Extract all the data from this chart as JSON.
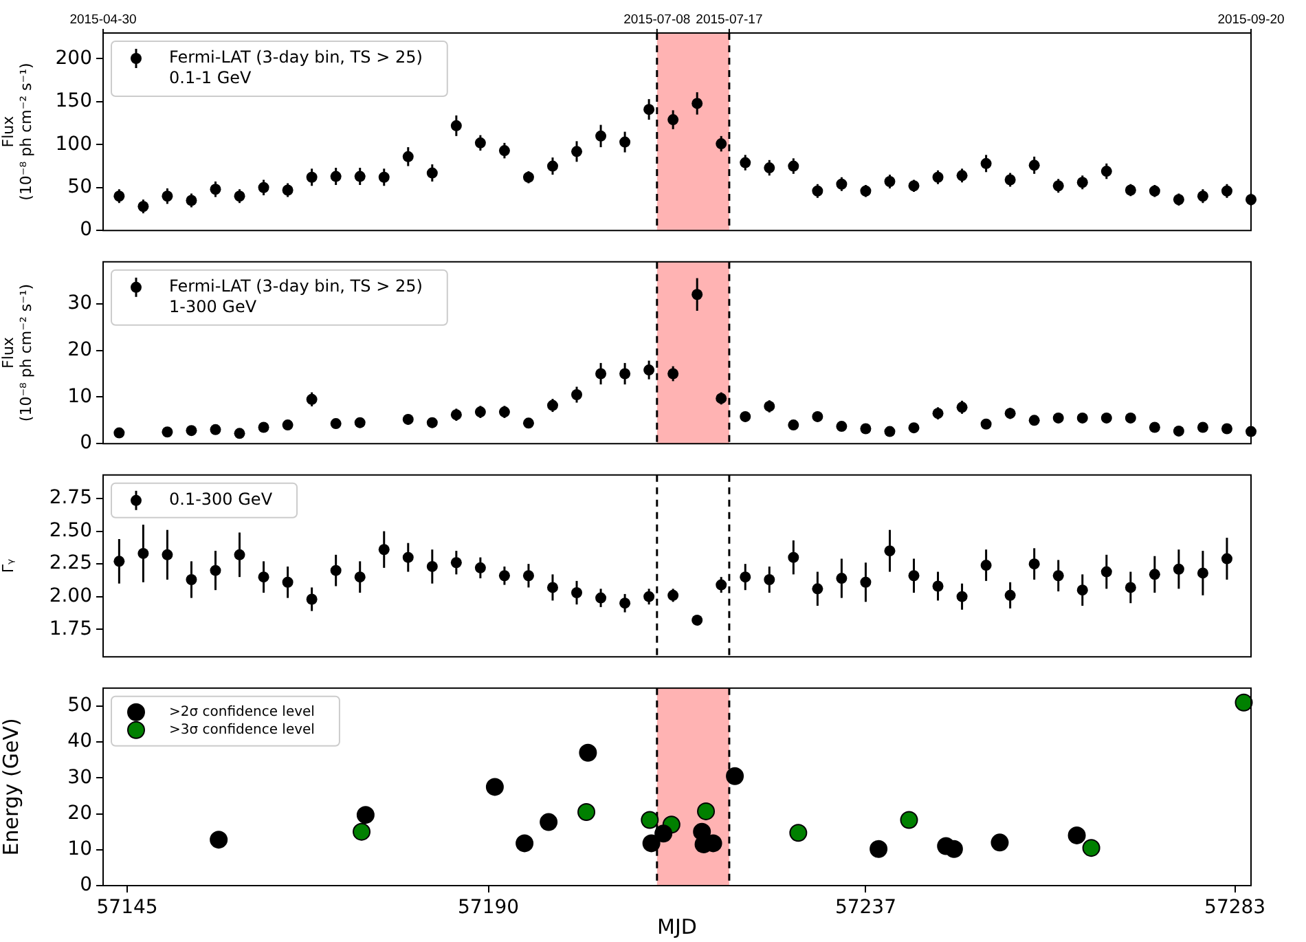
{
  "chart_data": [
    {
      "type": "scatter",
      "ylabel": "Flux\n(10⁻⁸ ph cm⁻² s⁻¹)",
      "xlim": [
        57142,
        57285
      ],
      "ylim": [
        0,
        230
      ],
      "yticks": [
        0,
        50,
        100,
        150,
        200
      ],
      "x2lim": [
        "2015-04-30",
        "2015-09-20"
      ],
      "x2ticks": [
        "2015-04-30",
        "2015-07-08",
        "2015-07-17",
        "2015-09-20"
      ],
      "tick_labels": "y",
      "grid": false,
      "legend": "top left",
      "marker": "circle",
      "x": [
        57144,
        57147,
        57150,
        57153,
        57156,
        57159,
        57162,
        57165,
        57168,
        57171,
        57174,
        57177,
        57180,
        57183,
        57186,
        57189,
        57192,
        57195,
        57198,
        57201,
        57204,
        57207,
        57210,
        57213,
        57216,
        57219,
        57222,
        57225,
        57228,
        57231,
        57234,
        57237,
        57240,
        57243,
        57246,
        57249,
        57252,
        57255,
        57258,
        57261,
        57264,
        57267,
        57270,
        57273,
        57276,
        57279,
        57282,
        57285
      ],
      "series": [
        {
          "name": "Fermi-LAT (3-day bin, TS > 25)\n0.1-1 GeV",
          "color": "#000000",
          "values": [
            40,
            28,
            40,
            35,
            48,
            40,
            50,
            47,
            62,
            63,
            63,
            62,
            86,
            67,
            122,
            102,
            93,
            62,
            75,
            92,
            110,
            103,
            141,
            129,
            148,
            101,
            79,
            73,
            75,
            46,
            54,
            46,
            57,
            52,
            62,
            64,
            78,
            59,
            76,
            52,
            56,
            69,
            47,
            46,
            36,
            40,
            46,
            36
          ],
          "errors": [
            8,
            8,
            9,
            8,
            9,
            8,
            9,
            8,
            10,
            10,
            10,
            10,
            11,
            10,
            12,
            9,
            9,
            7,
            10,
            12,
            13,
            12,
            12,
            11,
            13,
            9,
            9,
            9,
            9,
            8,
            8,
            7,
            8,
            7,
            8,
            8,
            10,
            8,
            10,
            8,
            8,
            9,
            7,
            7,
            7,
            8,
            8,
            7
          ]
        }
      ],
      "bands": [
        {
          "axis": "x",
          "from": 57211,
          "to": 57220,
          "color": "#ffb3b3"
        }
      ],
      "ref_lines": [
        {
          "axis": "x",
          "value": 57211,
          "color": "#000000",
          "line_style": "dashed"
        },
        {
          "axis": "x",
          "value": 57220,
          "color": "#000000",
          "line_style": "dashed"
        }
      ]
    },
    {
      "type": "scatter",
      "ylabel": "Flux\n(10⁻⁸ ph cm⁻² s⁻¹)",
      "xlim": [
        57142,
        57285
      ],
      "ylim": [
        0,
        39
      ],
      "yticks": [
        0,
        10,
        20,
        30
      ],
      "tick_labels": "y",
      "grid": false,
      "legend": "top left",
      "marker": "circle",
      "x": [
        57144,
        57147,
        57150,
        57153,
        57156,
        57159,
        57162,
        57165,
        57168,
        57171,
        57174,
        57177,
        57180,
        57183,
        57186,
        57189,
        57192,
        57195,
        57198,
        57201,
        57204,
        57207,
        57210,
        57213,
        57216,
        57219,
        57222,
        57225,
        57228,
        57231,
        57234,
        57237,
        57240,
        57243,
        57246,
        57249,
        57252,
        57255,
        57258,
        57261,
        57264,
        57267,
        57270,
        57273,
        57276,
        57279,
        57282,
        57285
      ],
      "series": [
        {
          "name": "Fermi-LAT (3-day bin, TS > 25)\n1-300 GeV",
          "color": "#000000",
          "values": [
            2.3,
            null,
            2.5,
            2.8,
            3,
            2.2,
            3.5,
            4,
            9.5,
            4.3,
            4.5,
            null,
            5.2,
            4.5,
            6.2,
            6.8,
            6.8,
            4.4,
            8.2,
            10.5,
            15,
            15,
            15.8,
            15,
            32,
            9.7,
            5.8,
            8,
            4,
            5.8,
            3.7,
            3.2,
            2.6,
            3.4,
            6.5,
            7.8,
            4.2,
            6.5,
            5,
            5.5,
            5.5,
            5.5,
            5.5,
            3.5,
            2.7,
            3.5,
            3.2,
            2.6
          ],
          "errors": [
            0.5,
            null,
            0.6,
            0.6,
            0.7,
            0.6,
            0.9,
            1,
            1.5,
            1,
            1.1,
            null,
            1.1,
            1.1,
            1.3,
            1.3,
            1.3,
            0.8,
            1.4,
            1.7,
            2.3,
            2.3,
            2,
            1.6,
            3.5,
            1.3,
            1.1,
            1.3,
            0.9,
            1.1,
            0.9,
            0.8,
            0.7,
            0.8,
            1.3,
            1.4,
            0.9,
            1.2,
            1,
            1,
            1,
            1,
            1,
            0.8,
            0.6,
            0.8,
            0.8,
            0.6
          ]
        }
      ],
      "bands": [
        {
          "axis": "x",
          "from": 57211,
          "to": 57220,
          "color": "#ffb3b3"
        }
      ],
      "ref_lines": [
        {
          "axis": "x",
          "value": 57211,
          "color": "#000000",
          "line_style": "dashed"
        },
        {
          "axis": "x",
          "value": 57220,
          "color": "#000000",
          "line_style": "dashed"
        }
      ]
    },
    {
      "type": "scatter",
      "ylabel": "Γᵧ",
      "xlim": [
        57142,
        57285
      ],
      "ylim": [
        1.54,
        2.93
      ],
      "yticks": [
        {
          "value": 1.75,
          "label": "1.75"
        },
        {
          "value": 2,
          "label": "2.00"
        },
        {
          "value": 2.25,
          "label": "2.25"
        },
        {
          "value": 2.5,
          "label": "2.50"
        },
        {
          "value": 2.75,
          "label": "2.75"
        }
      ],
      "tick_labels": "y",
      "grid": false,
      "legend": "top left",
      "marker": "circle",
      "x": [
        57144,
        57147,
        57150,
        57153,
        57156,
        57159,
        57162,
        57165,
        57168,
        57171,
        57174,
        57177,
        57180,
        57183,
        57186,
        57189,
        57192,
        57195,
        57198,
        57201,
        57204,
        57207,
        57210,
        57213,
        57216,
        57219,
        57222,
        57225,
        57228,
        57231,
        57234,
        57237,
        57240,
        57243,
        57246,
        57249,
        57252,
        57255,
        57258,
        57261,
        57264,
        57267,
        57270,
        57273,
        57276,
        57279,
        57282
      ],
      "series": [
        {
          "name": "0.1-300 GeV",
          "color": "#000000",
          "values": [
            2.27,
            2.33,
            2.32,
            2.13,
            2.2,
            2.32,
            2.15,
            2.11,
            1.98,
            2.2,
            2.15,
            2.36,
            2.3,
            2.23,
            2.26,
            2.22,
            2.16,
            2.16,
            2.07,
            2.03,
            1.99,
            1.95,
            2,
            2.01,
            1.82,
            2.09,
            2.15,
            2.13,
            2.3,
            2.06,
            2.14,
            2.11,
            2.35,
            2.16,
            2.08,
            2,
            2.24,
            2.01,
            2.25,
            2.16,
            2.05,
            2.19,
            2.07,
            2.17,
            2.21,
            2.18,
            2.29
          ],
          "errors": [
            0.17,
            0.22,
            0.19,
            0.14,
            0.15,
            0.17,
            0.12,
            0.12,
            0.09,
            0.12,
            0.12,
            0.14,
            0.11,
            0.13,
            0.09,
            0.08,
            0.07,
            0.09,
            0.1,
            0.09,
            0.07,
            0.07,
            0.06,
            0.05,
            0.03,
            0.06,
            0.1,
            0.1,
            0.13,
            0.13,
            0.15,
            0.15,
            0.16,
            0.13,
            0.11,
            0.1,
            0.12,
            0.1,
            0.12,
            0.12,
            0.12,
            0.13,
            0.12,
            0.14,
            0.15,
            0.17,
            0.16
          ]
        }
      ],
      "ref_lines": [
        {
          "axis": "x",
          "value": 57211,
          "color": "#000000",
          "line_style": "dashed"
        },
        {
          "axis": "x",
          "value": 57220,
          "color": "#000000",
          "line_style": "dashed"
        }
      ]
    },
    {
      "type": "scatter",
      "xlabel": "MJD",
      "ylabel": "Energy (GeV)",
      "xlim": [
        57142,
        57285
      ],
      "xticks": [
        57145,
        57190,
        57237,
        57283
      ],
      "ylim": [
        0,
        55
      ],
      "yticks": [
        0,
        10,
        20,
        30,
        40,
        50
      ],
      "grid": false,
      "legend": "top left",
      "marker": "circle",
      "series": [
        {
          "name": ">2σ confidence level",
          "color": "#000000",
          "x": [
            57156.4,
            57174.7,
            57190.8,
            57194.5,
            57197.5,
            57202.4,
            57210.3,
            57211.8,
            57216.6,
            57216.8,
            57218,
            57220.7,
            57238.6,
            57247,
            57248,
            57253.7,
            57263.3
          ],
          "values": [
            12.8,
            19.7,
            27.5,
            11.8,
            17.7,
            37,
            11.8,
            14.5,
            15,
            11.5,
            11.8,
            30.5,
            10.2,
            11,
            10.2,
            12,
            14
          ]
        },
        {
          "name": ">3σ confidence level",
          "color": "#008000",
          "x": [
            57174.2,
            57202.2,
            57210.1,
            57212.8,
            57217.1,
            57228.6,
            57242.4,
            57265.1,
            57284.1
          ],
          "values": [
            15,
            20.5,
            18.3,
            17,
            20.7,
            14.7,
            18.3,
            10.5,
            51
          ]
        }
      ],
      "bands": [
        {
          "axis": "x",
          "from": 57211,
          "to": 57220,
          "color": "#ffb3b3"
        }
      ],
      "ref_lines": [
        {
          "axis": "x",
          "value": 57211,
          "color": "#000000",
          "line_style": "dashed"
        },
        {
          "axis": "x",
          "value": 57220,
          "color": "#000000",
          "line_style": "dashed"
        }
      ]
    }
  ]
}
